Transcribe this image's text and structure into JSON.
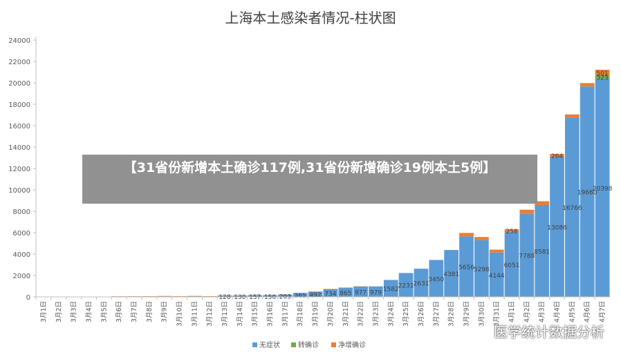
{
  "chart_data": {
    "type": "bar",
    "stacked": true,
    "title": "上海本土感染者情况-柱状图",
    "xlabel": "",
    "ylabel": "",
    "ylim": [
      0,
      24000
    ],
    "ytick_step": 2000,
    "grid": false,
    "legend_position": "bottom",
    "categories": [
      "3月1日",
      "3月2日",
      "3月3日",
      "3月4日",
      "3月5日",
      "3月6日",
      "3月7日",
      "3月8日",
      "3月9日",
      "3月10日",
      "3月11日",
      "3月12日",
      "3月13日",
      "3月14日",
      "3月15日",
      "3月16日",
      "3月17日",
      "3月18日",
      "3月19日",
      "3月20日",
      "3月21日",
      "3月22日",
      "3月23日",
      "3月24日",
      "3月25日",
      "3月26日",
      "3月27日",
      "3月28日",
      "3月29日",
      "3月30日",
      "3月31日",
      "4月1日",
      "4月2日",
      "4月3日",
      "4月4日",
      "4月5日",
      "4月6日",
      "4月7日"
    ],
    "series": [
      {
        "name": "无症状",
        "color": "#5b9bd5",
        "values": [
          1,
          0,
          0,
          2,
          28,
          45,
          51,
          62,
          76,
          64,
          78,
          64,
          128,
          130,
          157,
          150,
          203,
          365,
          492,
          734,
          865,
          977,
          979,
          1582,
          2231,
          2631,
          3450,
          4381,
          5656,
          5298,
          4144,
          6051,
          7788,
          8581,
          13086,
          16766,
          19660,
          20398
        ],
        "labels": [
          "",
          "",
          "",
          "",
          "",
          "",
          "",
          "",
          "",
          "",
          "",
          "",
          "128",
          "130",
          "157",
          "150",
          "203",
          "365",
          "492",
          "734",
          "865",
          "977",
          "979",
          "1582",
          "2231",
          "2631",
          "3450",
          "4381",
          "5656",
          "5298",
          "4144",
          "6051",
          "7788",
          "8581",
          "13086",
          "16766",
          "19660",
          "20398"
        ]
      },
      {
        "name": "转确诊",
        "color": "#70ad47",
        "values": [
          0,
          0,
          0,
          0,
          0,
          0,
          0,
          0,
          0,
          0,
          0,
          0,
          0,
          0,
          0,
          0,
          0,
          0,
          0,
          0,
          0,
          0,
          0,
          0,
          0,
          0,
          0,
          0,
          0,
          0,
          0,
          0,
          0,
          0,
          0,
          0,
          0,
          323
        ],
        "labels": [
          "",
          "",
          "",
          "",
          "",
          "",
          "",
          "",
          "",
          "",
          "",
          "",
          "",
          "",
          "",
          "",
          "",
          "",
          "",
          "",
          "",
          "",
          "",
          "",
          "",
          "",
          "",
          "",
          "",
          "",
          "",
          "",
          "",
          "",
          "",
          "",
          "",
          "323"
        ]
      },
      {
        "name": "净增确诊",
        "color": "#ed7d31",
        "values": [
          0,
          0,
          1,
          0,
          2,
          3,
          1,
          2,
          2,
          2,
          3,
          2,
          1,
          2,
          1,
          4,
          8,
          0,
          2,
          7,
          2,
          2,
          0,
          0,
          0,
          0,
          0,
          0,
          322,
          298,
          268,
          258,
          355,
          354,
          264,
          284,
          317,
          501
        ],
        "labels": [
          "",
          "",
          "",
          "",
          "",
          "",
          "",
          "",
          "",
          "",
          "",
          "",
          "",
          "",
          "",
          "",
          "",
          "",
          "",
          "",
          "",
          "",
          "",
          "",
          "",
          "",
          "",
          "",
          "",
          "",
          "",
          "258",
          "",
          "",
          "264",
          "",
          "",
          "501"
        ]
      }
    ]
  },
  "overlay": {
    "banner_text": "【31省份新增本土确诊117例,31省份新增确诊19例本土5例】",
    "watermark_text": "医学统计数据分析"
  }
}
